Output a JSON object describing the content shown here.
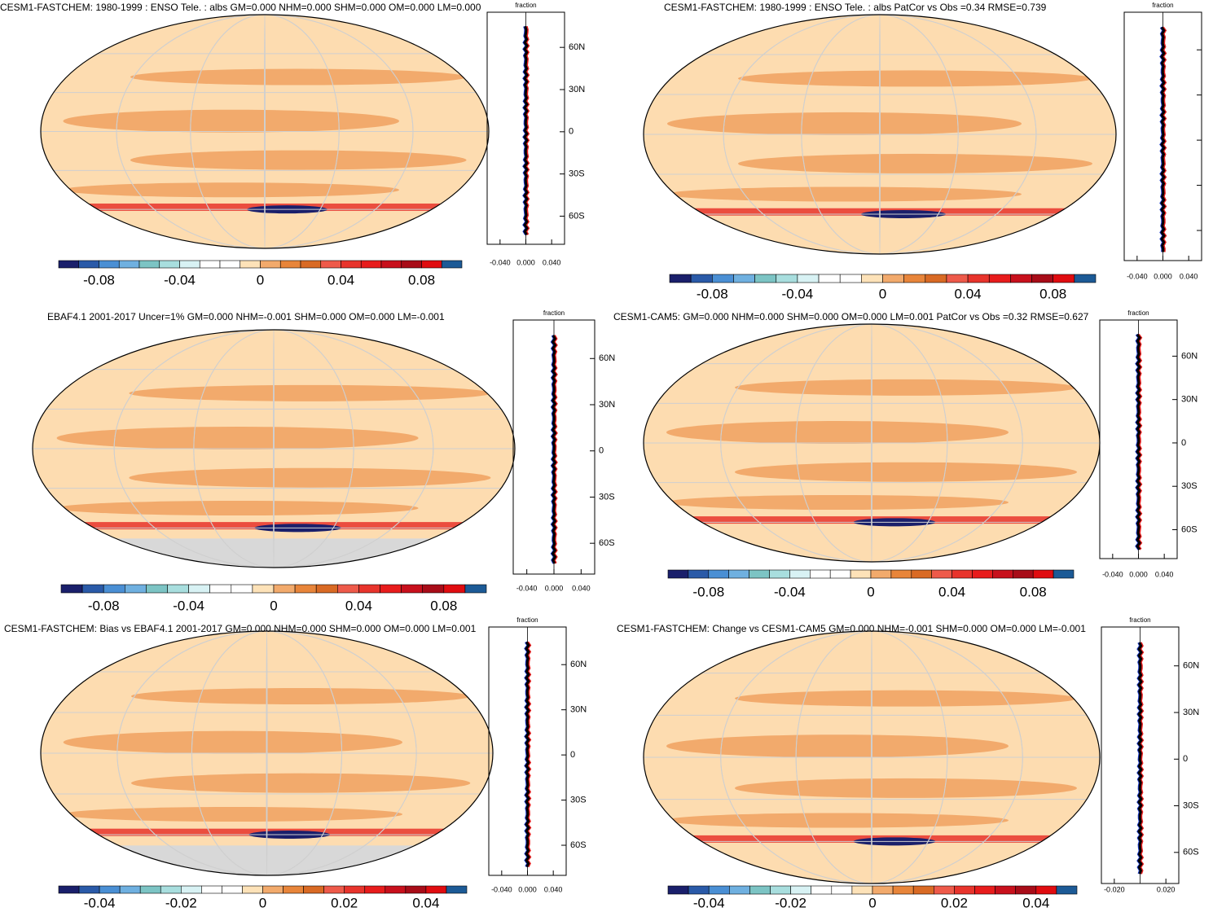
{
  "colorbar_colors": [
    "#1a1f6b",
    "#2a5aa8",
    "#4a8fd4",
    "#6fb0e0",
    "#7cc4c4",
    "#a8dede",
    "#d8f2f4",
    "#ffffff",
    "#ffffff",
    "#fde2b8",
    "#f2aa6c",
    "#e8853a",
    "#d96a24",
    "#ee5a4a",
    "#e8342c",
    "#e81c1c",
    "#c8101c",
    "#a80c18",
    "#e00c10",
    "#1c5a96"
  ],
  "panels": [
    {
      "title": "CESM1-FASTCHEM: 1980-1999 : ENSO Tele. : albs GM=0.000 NHM=0.000 SHM=0.000 OM=0.000 LM=0.000",
      "cbar_lim": [
        -0.1,
        0.1
      ],
      "cbar_ticks": [
        -0.08,
        -0.04,
        0,
        0.04,
        0.08
      ],
      "side_label": "fraction",
      "ylim": [
        -80,
        85
      ],
      "yticks": [
        {
          "value": 60,
          "label": "60N"
        },
        {
          "value": 30,
          "label": "30N"
        },
        0,
        {
          "value": -30,
          "label": "30S"
        },
        {
          "value": -60,
          "label": "60S"
        }
      ],
      "xlim": [
        -0.06,
        0.06
      ],
      "xticks": [
        {
          "value": -0.04,
          "label": "-0.040"
        },
        {
          "value": 0,
          "label": "0.000"
        },
        {
          "value": 0.04,
          "label": "0.040"
        }
      ],
      "polar_missing": false
    },
    {
      "title": "CESM1-FASTCHEM: 1980-1999 : ENSO Tele. : albs PatCor vs Obs =0.34 RMSE=0.739",
      "cbar_lim": [
        -0.1,
        0.1
      ],
      "cbar_ticks": [
        -0.08,
        -0.04,
        0,
        0.04,
        0.08
      ],
      "side_label": "fraction",
      "ylim": [
        -80,
        85
      ],
      "yticks": [
        60,
        30,
        0,
        -30,
        -60
      ],
      "ytick_labels": false,
      "xlim": [
        -0.06,
        0.06
      ],
      "xticks": [
        {
          "value": -0.04,
          "label": "-0.040"
        },
        {
          "value": 0,
          "label": "0.000"
        },
        {
          "value": 0.04,
          "label": "0.040"
        }
      ],
      "polar_missing": false
    },
    {
      "title": "EBAF4.1 2001-2017 Uncer=1% GM=0.000 NHM=-0.001 SHM=0.000 OM=0.000 LM=-0.001",
      "cbar_lim": [
        -0.1,
        0.1
      ],
      "cbar_ticks": [
        -0.08,
        -0.04,
        0,
        0.04,
        0.08
      ],
      "side_label": "fraction",
      "ylim": [
        -80,
        85
      ],
      "yticks": [
        {
          "value": 60,
          "label": "60N"
        },
        {
          "value": 30,
          "label": "30N"
        },
        0,
        {
          "value": -30,
          "label": "30S"
        },
        {
          "value": -60,
          "label": "60S"
        }
      ],
      "xlim": [
        -0.06,
        0.06
      ],
      "xticks": [
        {
          "value": -0.04,
          "label": "-0.040"
        },
        {
          "value": 0,
          "label": "0.000"
        },
        {
          "value": 0.04,
          "label": "0.040"
        }
      ],
      "polar_missing": true
    },
    {
      "title": "CESM1-CAM5: GM=0.000 NHM=0.000 SHM=0.000 OM=0.000 LM=0.001 PatCor vs Obs =0.32 RMSE=0.627",
      "cbar_lim": [
        -0.1,
        0.1
      ],
      "cbar_ticks": [
        -0.08,
        -0.04,
        0,
        0.04,
        0.08
      ],
      "side_label": "fraction",
      "ylim": [
        -80,
        85
      ],
      "yticks": [
        {
          "value": 60,
          "label": "60N"
        },
        {
          "value": 30,
          "label": "30N"
        },
        0,
        {
          "value": -30,
          "label": "30S"
        },
        {
          "value": -60,
          "label": "60S"
        }
      ],
      "xlim": [
        -0.06,
        0.06
      ],
      "xticks": [
        {
          "value": -0.04,
          "label": "-0.040"
        },
        {
          "value": 0,
          "label": "0.000"
        },
        {
          "value": 0.04,
          "label": "0.040"
        }
      ],
      "polar_missing": false
    },
    {
      "title": "CESM1-FASTCHEM: Bias vs EBAF4.1 2001-2017 GM=0.000 NHM=0.000 SHM=0.000 OM=0.000 LM=0.001",
      "cbar_lim": [
        -0.05,
        0.05
      ],
      "cbar_ticks": [
        -0.04,
        -0.02,
        0,
        0.02,
        0.04
      ],
      "side_label": "fraction",
      "ylim": [
        -80,
        85
      ],
      "yticks": [
        {
          "value": 60,
          "label": "60N"
        },
        {
          "value": 30,
          "label": "30N"
        },
        0,
        {
          "value": -30,
          "label": "30S"
        },
        {
          "value": -60,
          "label": "60S"
        }
      ],
      "xlim": [
        -0.06,
        0.06
      ],
      "xticks": [
        {
          "value": -0.04,
          "label": "-0.040"
        },
        {
          "value": 0,
          "label": "0.000"
        },
        {
          "value": 0.04,
          "label": "0.040"
        }
      ],
      "polar_missing": true
    },
    {
      "title": "CESM1-FASTCHEM: Change vs CESM1-CAM5 GM=0.000 NHM=-0.001 SHM=0.000 OM=0.000 LM=-0.001",
      "cbar_lim": [
        -0.05,
        0.05
      ],
      "cbar_ticks": [
        -0.04,
        -0.02,
        0,
        0.02,
        0.04
      ],
      "side_label": "fraction",
      "ylim": [
        -80,
        85
      ],
      "yticks": [
        {
          "value": 60,
          "label": "60N"
        },
        {
          "value": 30,
          "label": "30N"
        },
        0,
        {
          "value": -30,
          "label": "30S"
        },
        {
          "value": -60,
          "label": "60S"
        }
      ],
      "xlim": [
        -0.03,
        0.03
      ],
      "xticks": [
        {
          "value": -0.02,
          "label": "-0.020"
        },
        {
          "value": 0.02,
          "label": "0.020"
        }
      ],
      "polar_missing": false
    }
  ]
}
